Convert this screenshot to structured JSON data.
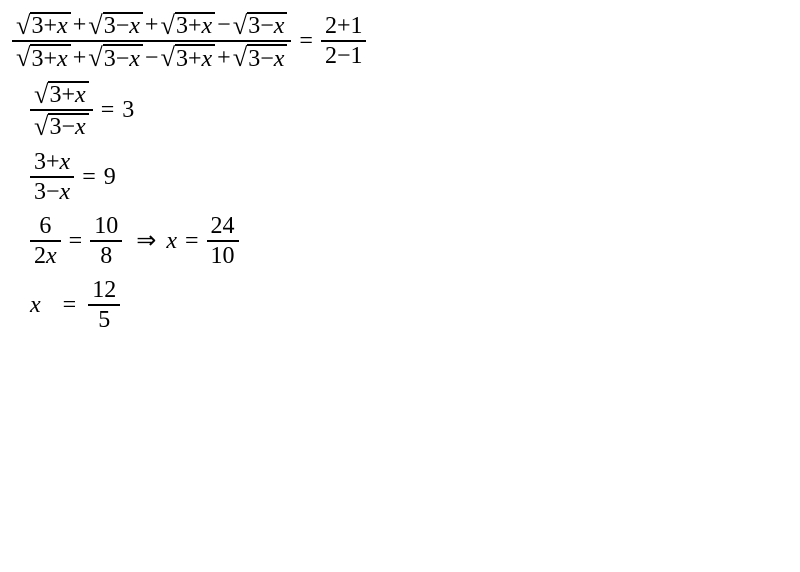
{
  "font": {
    "family": "Times New Roman",
    "size_pt": 24,
    "color": "#000000"
  },
  "background_color": "#ffffff",
  "line1": {
    "lhs_frac": {
      "num_terms": [
        "√(3+x)",
        "+",
        "√(3−x)",
        "+",
        "√(3+x)",
        "−",
        "√(3−x)"
      ],
      "den_terms": [
        "√(3+x)",
        "+",
        "√(3−x)",
        "−",
        "√(3+x)",
        "+",
        "√(3−x)"
      ]
    },
    "eq": "=",
    "rhs_frac": {
      "num": "2+1",
      "den": "2−1"
    }
  },
  "line2": {
    "lhs_frac": {
      "num_sqrt": "3+x",
      "den_sqrt": "3−x"
    },
    "eq": "=",
    "rhs": "3"
  },
  "line3": {
    "lhs_frac": {
      "num": "3+x",
      "den": "3−x"
    },
    "eq": "=",
    "rhs": "9"
  },
  "line4": {
    "lhs_frac": {
      "num": "6",
      "den": "2x"
    },
    "eq1": "=",
    "mid_frac": {
      "num": "10",
      "den": "8"
    },
    "arrow": "⇒",
    "x": "x",
    "eq2": "=",
    "rhs_frac": {
      "num": "24",
      "den": "10"
    }
  },
  "line5": {
    "x": "x",
    "eq": "=",
    "rhs_frac": {
      "num": "12",
      "den": "5"
    }
  },
  "sqrt_inner": {
    "a": "3+x",
    "b": "3−x"
  },
  "ops": {
    "plus": "+",
    "minus": "−"
  }
}
